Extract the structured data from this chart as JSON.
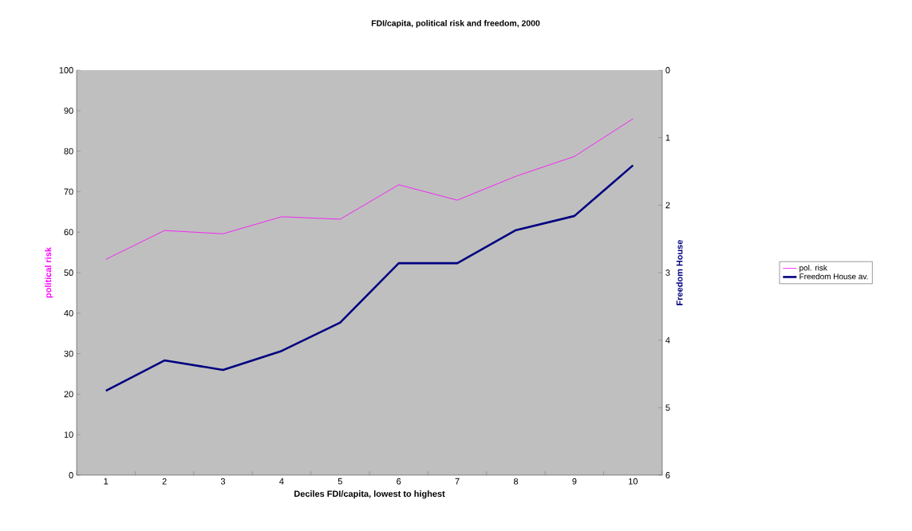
{
  "chart_data": {
    "type": "line",
    "title": "FDI/capita, political risk and freedom, 2000",
    "xlabel": "Deciles FDI/capita, lowest to highest",
    "ylabel": "political risk",
    "y2label": "Freedom House",
    "categories": [
      "1",
      "2",
      "3",
      "4",
      "5",
      "6",
      "7",
      "8",
      "9",
      "10"
    ],
    "series": [
      {
        "name": "pol. risk",
        "color": "#ff00ff",
        "values": [
          53.3,
          60.4,
          59.6,
          63.8,
          63.2,
          71.7,
          67.9,
          73.8,
          78.7,
          88.0
        ]
      },
      {
        "name": "Freedom House av.",
        "color": "#000080",
        "axis": "y2",
        "values": [
          4.75,
          4.3,
          4.44,
          4.16,
          3.74,
          2.86,
          2.86,
          2.37,
          2.16,
          1.41
        ]
      }
    ],
    "ylim": [
      0,
      100
    ],
    "yticks": [
      0,
      10,
      20,
      30,
      40,
      50,
      60,
      70,
      80,
      90,
      100
    ],
    "y2lim": [
      6,
      0
    ],
    "y2ticks": [
      0,
      1,
      2,
      3,
      4,
      5,
      6
    ],
    "legend": "right",
    "grid": false,
    "marker": "none",
    "line_style": "solid"
  }
}
